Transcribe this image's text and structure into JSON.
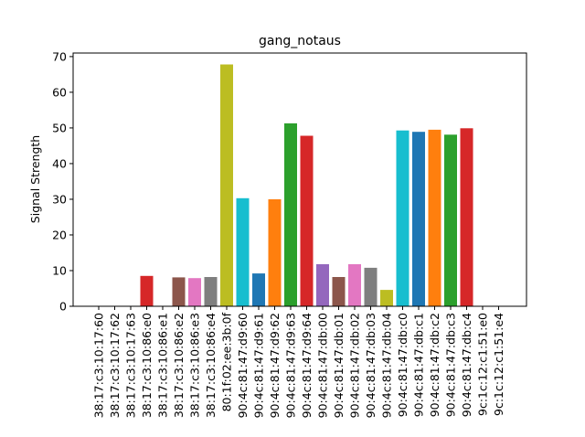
{
  "chart_data": {
    "type": "bar",
    "title": "gang_notaus",
    "xlabel": "",
    "ylabel": "Signal Strength",
    "ylim": [
      0,
      71
    ],
    "yticks": [
      0,
      10,
      20,
      30,
      40,
      50,
      60,
      70
    ],
    "grid": false,
    "categories": [
      "38:17:c3:10:17:60",
      "38:17:c3:10:17:62",
      "38:17:c3:10:17:63",
      "38:17:c3:10:86:e0",
      "38:17:c3:10:86:e1",
      "38:17:c3:10:86:e2",
      "38:17:c3:10:86:e3",
      "38:17:c3:10:86:e4",
      "80:1f:02:ee:3b:0f",
      "90:4c:81:47:d9:60",
      "90:4c:81:47:d9:61",
      "90:4c:81:47:d9:62",
      "90:4c:81:47:d9:63",
      "90:4c:81:47:d9:64",
      "90:4c:81:47:db:00",
      "90:4c:81:47:db:01",
      "90:4c:81:47:db:02",
      "90:4c:81:47:db:03",
      "90:4c:81:47:db:04",
      "90:4c:81:47:db:c0",
      "90:4c:81:47:db:c1",
      "90:4c:81:47:db:c2",
      "90:4c:81:47:db:c3",
      "90:4c:81:47:db:c4",
      "9c:1c:12:c1:51:e0",
      "9c:1c:12:c1:51:e4"
    ],
    "values": [
      0,
      0,
      0,
      8.5,
      0,
      8.1,
      7.9,
      8.2,
      67.8,
      30.3,
      9.2,
      30.0,
      51.3,
      47.8,
      11.8,
      8.2,
      11.8,
      10.8,
      4.6,
      49.3,
      48.9,
      49.5,
      48.1,
      49.9,
      0,
      0
    ],
    "colors": [
      "#1f77b4",
      "#ff7f0e",
      "#2ca02c",
      "#d62728",
      "#9467bd",
      "#8c564b",
      "#e377c2",
      "#7f7f7f",
      "#bcbd22",
      "#17becf",
      "#1f77b4",
      "#ff7f0e",
      "#2ca02c",
      "#d62728",
      "#9467bd",
      "#8c564b",
      "#e377c2",
      "#7f7f7f",
      "#bcbd22",
      "#17becf",
      "#1f77b4",
      "#ff7f0e",
      "#2ca02c",
      "#d62728",
      "#9467bd",
      "#8c564b"
    ]
  }
}
